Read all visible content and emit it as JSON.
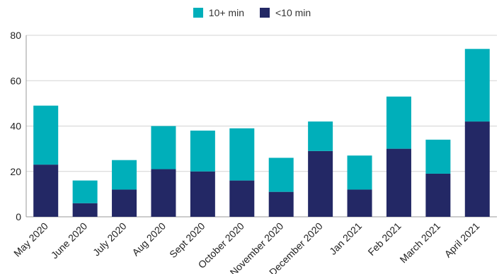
{
  "chart_data": {
    "type": "bar",
    "stacked": true,
    "categories": [
      "May 2020",
      "June 2020",
      "July 2020",
      "Aug 2020",
      "Sept 2020",
      "October 2020",
      "November 2020",
      "December 2020",
      "Jan 2021",
      "Feb 2021",
      "March 2021",
      "April 2021"
    ],
    "series": [
      {
        "name": "<10 min",
        "color": "#232865",
        "values": [
          23,
          6,
          12,
          21,
          20,
          16,
          11,
          29,
          12,
          30,
          19,
          42
        ]
      },
      {
        "name": "10+ min",
        "color": "#00AFBA",
        "values": [
          26,
          10,
          13,
          19,
          18,
          23,
          15,
          13,
          15,
          23,
          15,
          32
        ]
      }
    ],
    "ylim": [
      0,
      80
    ],
    "yticks": [
      0,
      20,
      40,
      60,
      80
    ],
    "grid": true,
    "legend_position": "top",
    "legend_order": [
      "10+ min",
      "<10 min"
    ]
  }
}
